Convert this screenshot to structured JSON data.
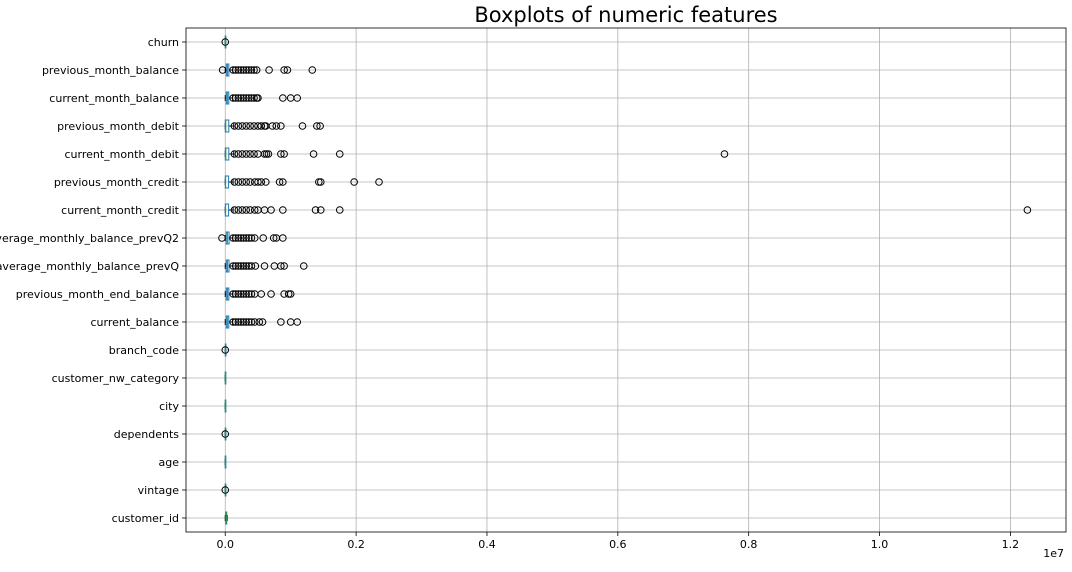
{
  "chart_data": {
    "type": "boxplot",
    "orientation": "horizontal",
    "title": "Boxplots of numeric features",
    "xlabel": "",
    "ylabel": "",
    "x_scale_label": "1e7",
    "xlim": [
      -0.06,
      1.285
    ],
    "x_ticks": [
      0.0,
      0.2,
      0.4,
      0.6,
      0.8,
      1.0,
      1.2
    ],
    "x_tick_labels": [
      "0.0",
      "0.2",
      "0.4",
      "0.6",
      "0.8",
      "1.0",
      "1.2"
    ],
    "grid": true,
    "features": [
      {
        "name": "churn",
        "box": [
          0,
          0,
          0,
          0,
          0
        ],
        "outliers": [
          0.0
        ]
      },
      {
        "name": "previous_month_balance",
        "box": [
          0,
          0.0016,
          0.0034,
          0.0055,
          0.0115
        ],
        "outliers": [
          0.012,
          0.016,
          0.02,
          0.024,
          0.028,
          0.032,
          0.036,
          0.04,
          0.044,
          0.048,
          0.067,
          0.09,
          0.095,
          0.133,
          -0.004
        ]
      },
      {
        "name": "current_month_balance",
        "box": [
          0,
          0.0016,
          0.0033,
          0.0054,
          0.0112
        ],
        "outliers": [
          0.012,
          0.016,
          0.02,
          0.024,
          0.028,
          0.032,
          0.036,
          0.04,
          0.044,
          0.048,
          0.05,
          0.088,
          0.1,
          0.11
        ]
      },
      {
        "name": "previous_month_debit",
        "box": [
          0,
          0.0001,
          0.0008,
          0.0054,
          0.013
        ],
        "outliers": [
          0.014,
          0.02,
          0.026,
          0.032,
          0.038,
          0.044,
          0.05,
          0.055,
          0.06,
          0.062,
          0.072,
          0.078,
          0.085,
          0.118,
          0.14,
          0.145
        ]
      },
      {
        "name": "current_month_debit",
        "box": [
          0,
          0.0001,
          0.0009,
          0.0054,
          0.013
        ],
        "outliers": [
          0.014,
          0.02,
          0.026,
          0.032,
          0.038,
          0.044,
          0.05,
          0.06,
          0.063,
          0.066,
          0.085,
          0.09,
          0.135,
          0.175,
          0.763
        ]
      },
      {
        "name": "previous_month_credit",
        "box": [
          0,
          0.0001,
          0.0006,
          0.0051,
          0.012
        ],
        "outliers": [
          0.014,
          0.02,
          0.026,
          0.032,
          0.038,
          0.045,
          0.05,
          0.055,
          0.062,
          0.083,
          0.088,
          0.143,
          0.146,
          0.197,
          0.235
        ]
      },
      {
        "name": "current_month_credit",
        "box": [
          0,
          0.0001,
          0.0006,
          0.0051,
          0.012
        ],
        "outliers": [
          0.014,
          0.02,
          0.026,
          0.032,
          0.038,
          0.045,
          0.05,
          0.06,
          0.07,
          0.088,
          0.138,
          0.146,
          0.175,
          1.226
        ]
      },
      {
        "name": "average_monthly_balance_prevQ2",
        "box": [
          0,
          0.0015,
          0.0033,
          0.0058,
          0.0115
        ],
        "outliers": [
          0.012,
          0.016,
          0.02,
          0.024,
          0.028,
          0.032,
          0.036,
          0.04,
          0.045,
          0.058,
          0.074,
          0.078,
          0.088,
          -0.005
        ]
      },
      {
        "name": "average_monthly_balance_prevQ",
        "box": [
          0,
          0.0016,
          0.0034,
          0.0057,
          0.0118
        ],
        "outliers": [
          0.012,
          0.016,
          0.02,
          0.024,
          0.028,
          0.032,
          0.036,
          0.04,
          0.046,
          0.06,
          0.075,
          0.085,
          0.09,
          0.12
        ]
      },
      {
        "name": "previous_month_end_balance",
        "box": [
          0,
          0.0016,
          0.0034,
          0.0055,
          0.0115
        ],
        "outliers": [
          0.012,
          0.016,
          0.02,
          0.024,
          0.028,
          0.032,
          0.036,
          0.04,
          0.045,
          0.055,
          0.07,
          0.09,
          0.097,
          0.1
        ]
      },
      {
        "name": "current_balance",
        "box": [
          0,
          0.0016,
          0.0033,
          0.0054,
          0.0112
        ],
        "outliers": [
          0.012,
          0.016,
          0.02,
          0.024,
          0.028,
          0.032,
          0.036,
          0.04,
          0.045,
          0.052,
          0.057,
          0.085,
          0.1,
          0.11
        ]
      },
      {
        "name": "branch_code",
        "box": [
          0,
          0.0001,
          0.0002,
          0.0003,
          0.0004
        ],
        "outliers": [
          0.0
        ]
      },
      {
        "name": "customer_nw_category",
        "box": [
          0,
          0,
          0,
          0,
          0
        ],
        "outliers": []
      },
      {
        "name": "city",
        "box": [
          0,
          0,
          0,
          0,
          0
        ],
        "outliers": []
      },
      {
        "name": "dependents",
        "box": [
          0,
          0,
          0,
          0,
          0
        ],
        "outliers": [
          0.0
        ]
      },
      {
        "name": "age",
        "box": [
          0,
          0,
          0,
          0,
          0
        ],
        "outliers": []
      },
      {
        "name": "vintage",
        "box": [
          0,
          0,
          0,
          0,
          0
        ],
        "outliers": [
          0.0
        ]
      },
      {
        "name": "customer_id",
        "box": [
          0,
          0.0008,
          0.0015,
          0.0023,
          0.003
        ],
        "outliers": []
      }
    ],
    "colors": {
      "box": "#1f77b4",
      "median": "#2ca02c",
      "whisker": "#000000",
      "outlier_edge": "#000000",
      "grid": "#b0b0b0",
      "axes": "#000000"
    }
  }
}
